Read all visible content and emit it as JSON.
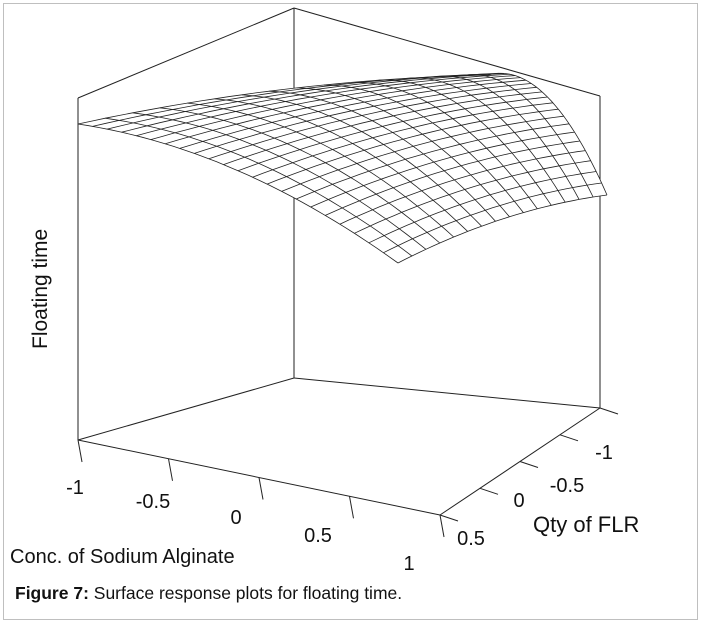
{
  "chart_data": {
    "type": "surface",
    "x": {
      "label": "Conc. of Sodium Alginate",
      "ticks": [
        "-1",
        "-0.5",
        "0",
        "0.5",
        "1"
      ],
      "range": [
        -1,
        1
      ]
    },
    "y": {
      "label": "Qty of FLR",
      "ticks": [
        "-1",
        "-0.5",
        "0",
        "0.5"
      ],
      "range": [
        -1,
        1
      ]
    },
    "z": {
      "label": "Floating time",
      "ticks": []
    },
    "surface": {
      "description_values": "relative height (0 = bottom of box, 1 = top of box)",
      "corner_heights": {
        "x_-1_y_-1": 0.82,
        "x_1_y_-1": 0.88,
        "x_-1_y_1": 0.43,
        "x_1_y_1": 0.51
      },
      "curvature_y": -0.45,
      "curvature_x": -0.05,
      "grid_x": 15,
      "grid_y": 22
    },
    "grid": false,
    "style": "wireframe"
  },
  "caption": {
    "label": "Figure 7:",
    "text": " Surface response plots for floating time."
  }
}
